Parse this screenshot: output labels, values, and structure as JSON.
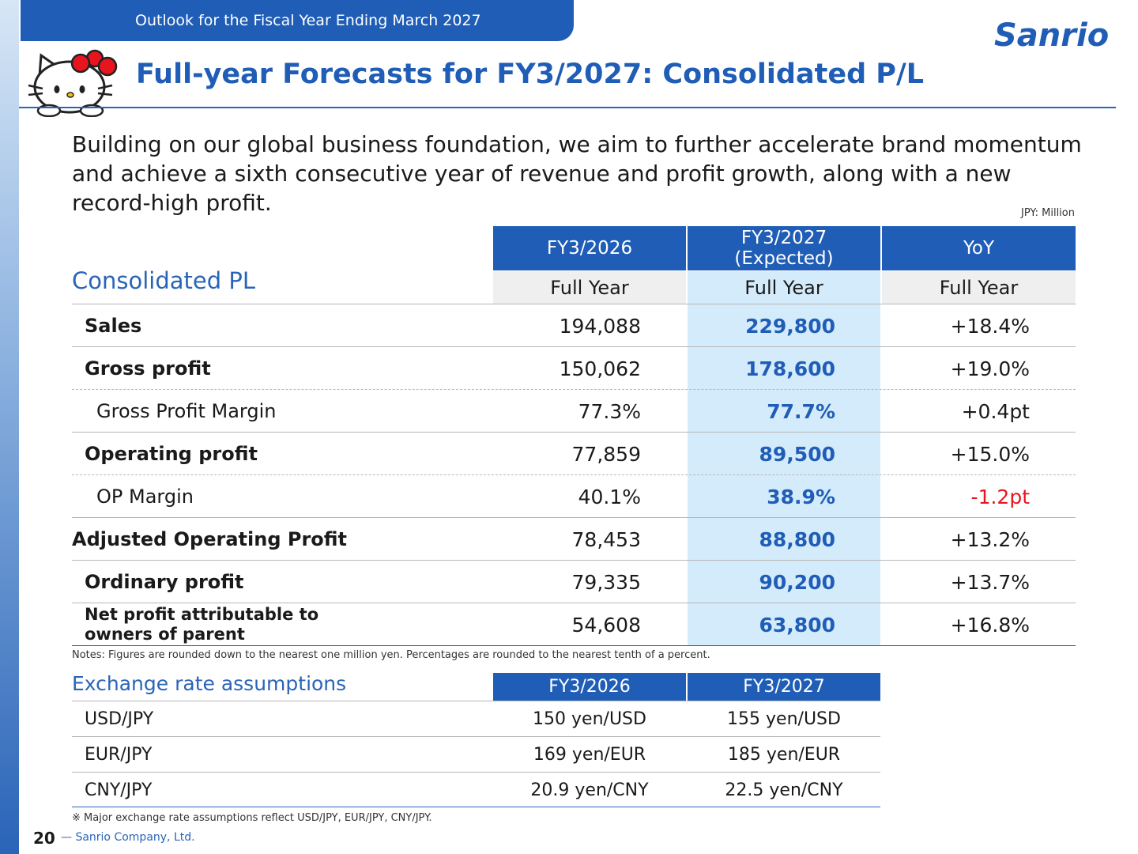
{
  "header": {
    "section_tab": "Outlook for the Fiscal Year Ending March 2027",
    "title": "Full-year Forecasts for FY3/2027: Consolidated P/L",
    "logo_text": "Sanrio"
  },
  "lead_text": "Building on our global business foundation, we aim to further accelerate brand momentum and achieve a sixth consecutive year of revenue and profit growth, along with a new record-high profit.",
  "unit_note": "JPY: Million",
  "pl_table": {
    "heading": "Consolidated PL",
    "columns": [
      {
        "header": "FY3/2026",
        "sub": "Full Year"
      },
      {
        "header_line1": "FY3/2027",
        "header_line2": "(Expected)",
        "sub": "Full Year"
      },
      {
        "header": "YoY",
        "sub": "Full Year"
      }
    ],
    "rows": [
      {
        "label": "Sales",
        "v1": "194,088",
        "v2": "229,800",
        "v3": "+18.4%"
      },
      {
        "label": "Gross profit",
        "v1": "150,062",
        "v2": "178,600",
        "v3": "+19.0%"
      },
      {
        "label": "Gross Profit Margin",
        "v1": "77.3%",
        "v2": "77.7%",
        "v3": "+0.4pt"
      },
      {
        "label": "Operating profit",
        "v1": "77,859",
        "v2": "89,500",
        "v3": "+15.0%"
      },
      {
        "label": "OP Margin",
        "v1": "40.1%",
        "v2": "38.9%",
        "v3": "-1.2pt"
      },
      {
        "label": "Adjusted Operating Profit",
        "v1": "78,453",
        "v2": "88,800",
        "v3": "+13.2%"
      },
      {
        "label": "Ordinary profit",
        "v1": "79,335",
        "v2": "90,200",
        "v3": "+13.7%"
      },
      {
        "label_line1": "Net profit attributable  to",
        "label_line2": "owners of parent",
        "v1": "54,608",
        "v2": "63,800",
        "v3": "+16.8%"
      }
    ],
    "notes": "Notes: Figures are rounded down to the nearest one million yen. Percentages are rounded to the nearest tenth of a percent."
  },
  "fx_table": {
    "heading": "Exchange rate assumptions",
    "columns": [
      "FY3/2026",
      "FY3/2027"
    ],
    "rows": [
      {
        "label": "USD/JPY",
        "c1": "150 yen/USD",
        "c2": "155 yen/USD"
      },
      {
        "label": "EUR/JPY",
        "c1": "169 yen/EUR",
        "c2": "185 yen/EUR"
      },
      {
        "label": "CNY/JPY",
        "c1": "20.9 yen/CNY",
        "c2": "22.5 yen/CNY"
      }
    ],
    "note": "※ Major exchange rate assumptions reflect USD/JPY, EUR/JPY, CNY/JPY."
  },
  "footer": {
    "page_number": "20",
    "company": "— Sanrio Company, Ltd."
  },
  "colors": {
    "brand_blue": "#1f5db6",
    "highlight": "#d4ebfb",
    "negative": "#e8141e"
  }
}
